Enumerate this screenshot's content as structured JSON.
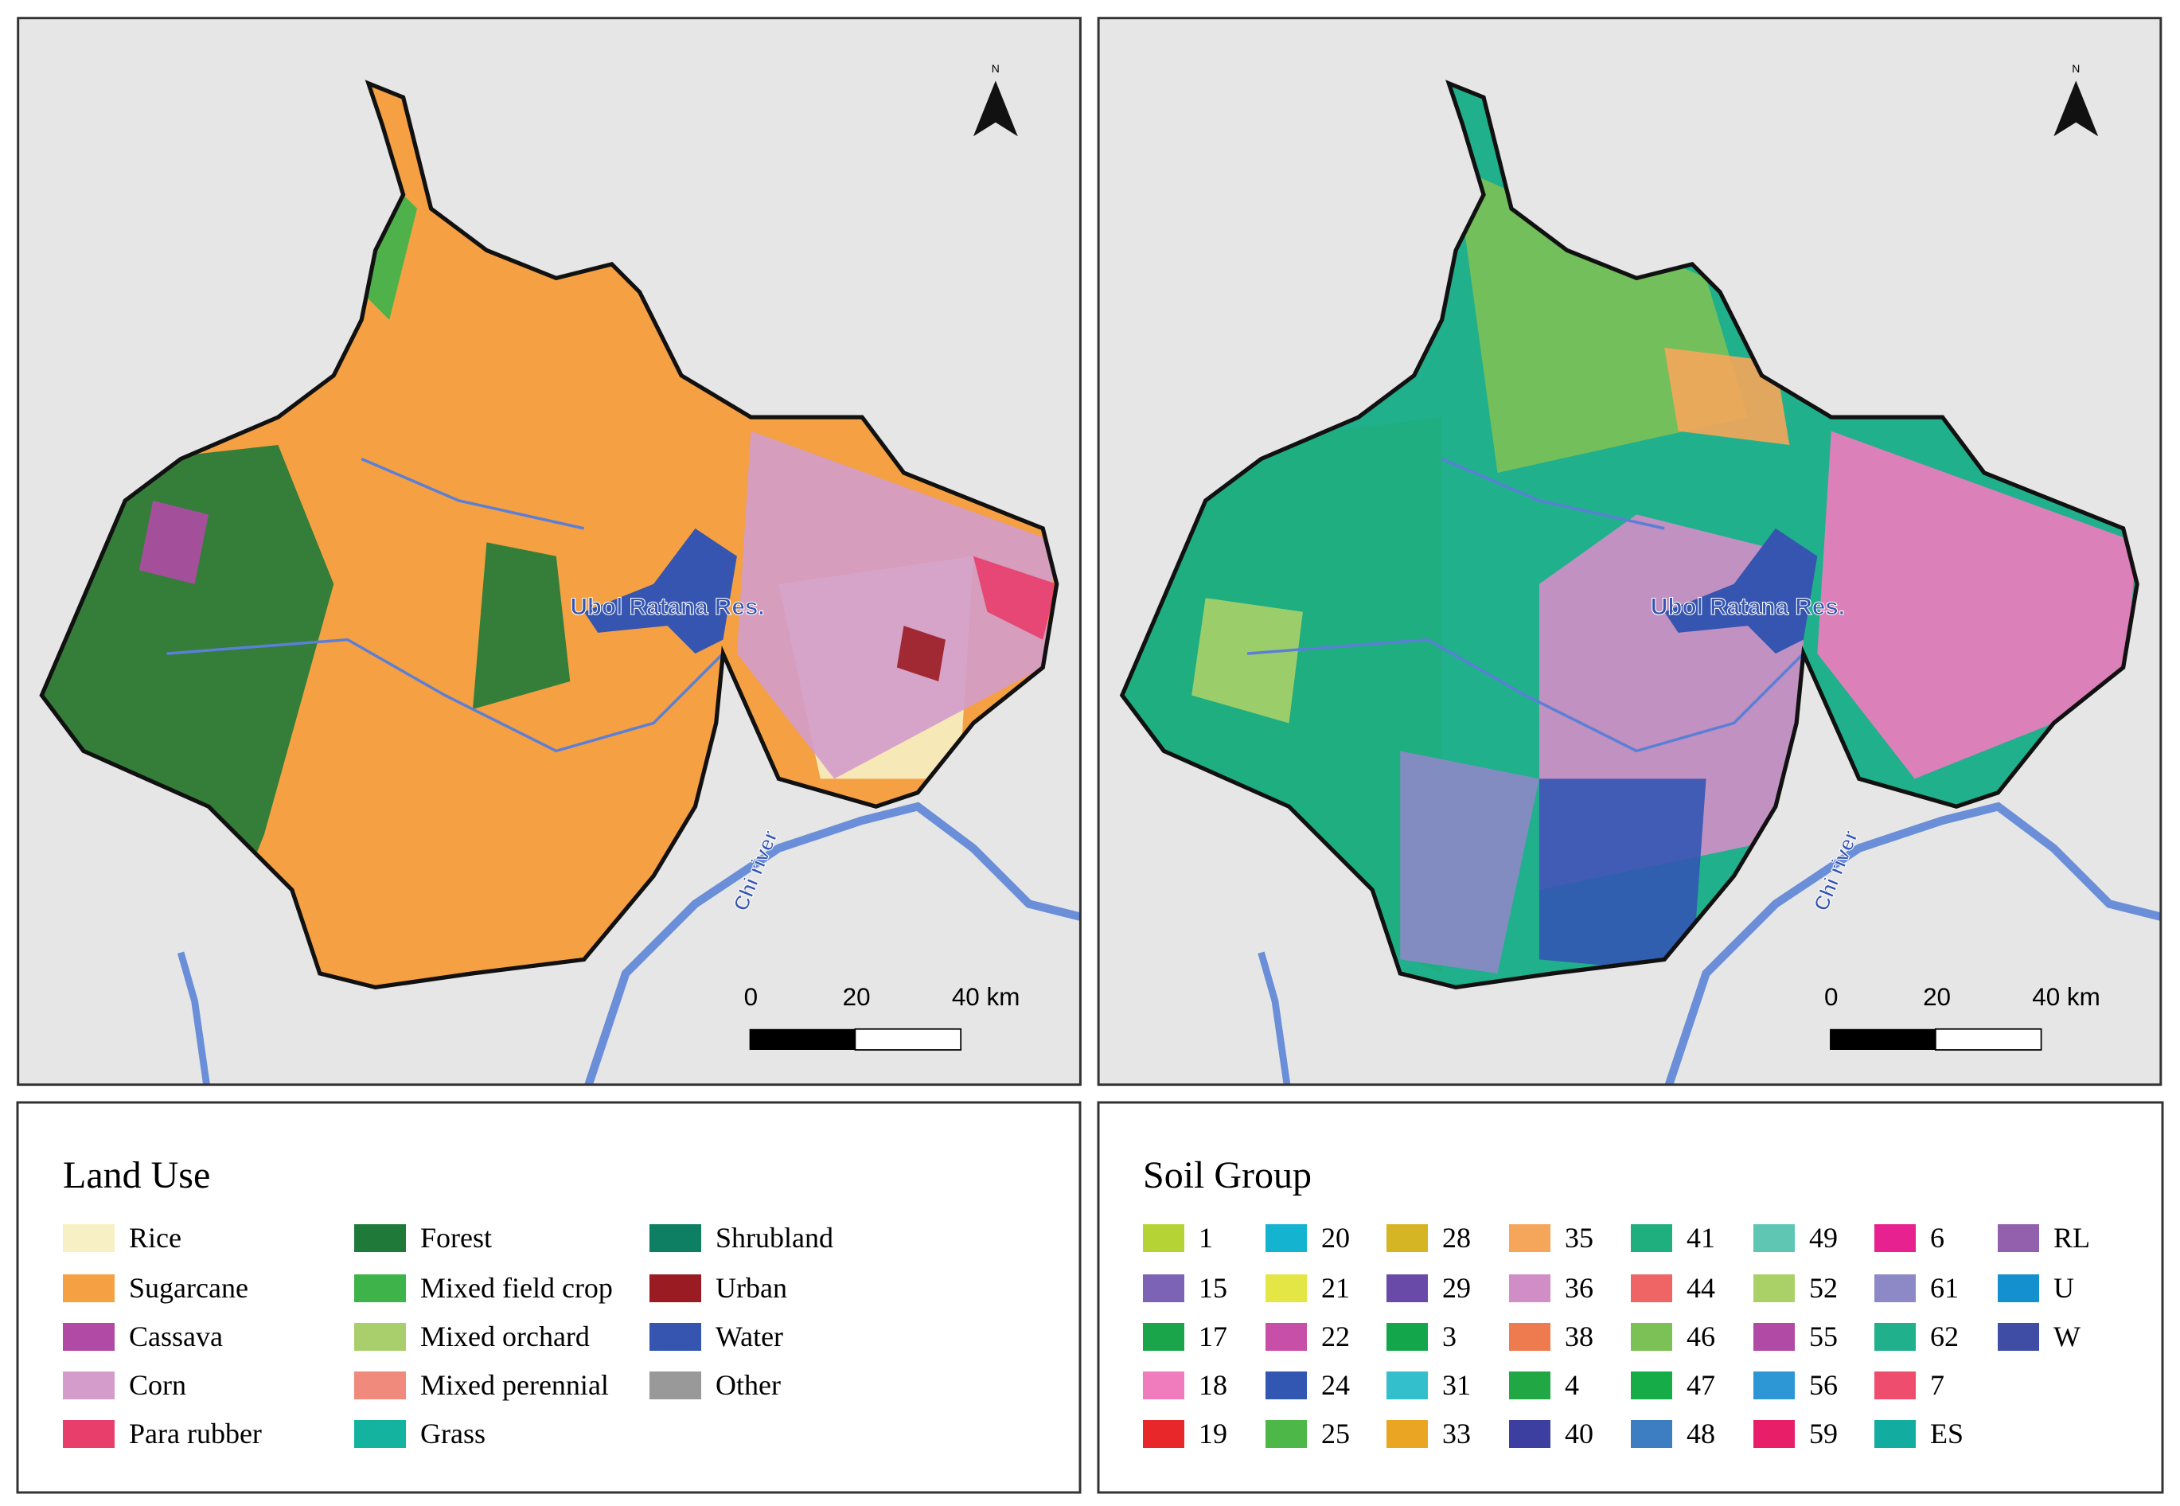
{
  "maps": [
    {
      "reservoir": "Ubol Ratana Res.",
      "river": "Chi river",
      "north": "N",
      "scale": [
        "0",
        "20",
        "40 km"
      ]
    },
    {
      "reservoir": "Ubol Ratana Res.",
      "river": "Chi river",
      "north": "N",
      "scale": [
        "0",
        "20",
        "40 km"
      ]
    }
  ],
  "legends": [
    {
      "title": "Land Use",
      "items": [
        {
          "label": "Rice",
          "color": "#f7f0c4"
        },
        {
          "label": "Sugarcane",
          "color": "#f5a042"
        },
        {
          "label": "Cassava",
          "color": "#b04aa4"
        },
        {
          "label": "Corn",
          "color": "#d39ccb"
        },
        {
          "label": "Para rubber",
          "color": "#e83e6c"
        },
        {
          "label": "Forest",
          "color": "#1f7a3a"
        },
        {
          "label": "Mixed field crop",
          "color": "#3db34a"
        },
        {
          "label": "Mixed orchard",
          "color": "#a9cf6d"
        },
        {
          "label": "Mixed perennial",
          "color": "#ef8a7c"
        },
        {
          "label": "Grass",
          "color": "#13b3a0"
        },
        {
          "label": "Shrubland",
          "color": "#0f7f64"
        },
        {
          "label": "Urban",
          "color": "#9a1c22"
        },
        {
          "label": "Water",
          "color": "#3555b0"
        },
        {
          "label": "Other",
          "color": "#999999"
        }
      ]
    },
    {
      "title": "Soil Group",
      "items": [
        {
          "label": "1",
          "color": "#b5d334"
        },
        {
          "label": "15",
          "color": "#7c63b5"
        },
        {
          "label": "17",
          "color": "#1aa54a"
        },
        {
          "label": "18",
          "color": "#f07bbd"
        },
        {
          "label": "19",
          "color": "#e8272b"
        },
        {
          "label": "20",
          "color": "#14b3cf"
        },
        {
          "label": "21",
          "color": "#e3e644"
        },
        {
          "label": "22",
          "color": "#c74fa8"
        },
        {
          "label": "24",
          "color": "#3257b3"
        },
        {
          "label": "25",
          "color": "#4db748"
        },
        {
          "label": "28",
          "color": "#d6b524"
        },
        {
          "label": "29",
          "color": "#6a4aa8"
        },
        {
          "label": "3",
          "color": "#14a64b"
        },
        {
          "label": "31",
          "color": "#34bfcc"
        },
        {
          "label": "33",
          "color": "#eaa623"
        },
        {
          "label": "35",
          "color": "#f6a65a"
        },
        {
          "label": "36",
          "color": "#d18ec6"
        },
        {
          "label": "38",
          "color": "#ee7b4f"
        },
        {
          "label": "4",
          "color": "#21a845"
        },
        {
          "label": "40",
          "color": "#3c3f9f"
        },
        {
          "label": "41",
          "color": "#1fae7e"
        },
        {
          "label": "44",
          "color": "#ef6565"
        },
        {
          "label": "46",
          "color": "#7cc155"
        },
        {
          "label": "47",
          "color": "#16ac47"
        },
        {
          "label": "48",
          "color": "#3c7ec1"
        },
        {
          "label": "49",
          "color": "#5fc6b4"
        },
        {
          "label": "52",
          "color": "#a9d168"
        },
        {
          "label": "55",
          "color": "#b04aa5"
        },
        {
          "label": "56",
          "color": "#2d97d5"
        },
        {
          "label": "59",
          "color": "#e81f68"
        },
        {
          "label": "6",
          "color": "#e7218f"
        },
        {
          "label": "61",
          "color": "#8d88c6"
        },
        {
          "label": "62",
          "color": "#20b08c"
        },
        {
          "label": "7",
          "color": "#ee4d6e"
        },
        {
          "label": "ES",
          "color": "#12aca1"
        },
        {
          "label": "RL",
          "color": "#9360ad"
        },
        {
          "label": "U",
          "color": "#1590cf"
        },
        {
          "label": "W",
          "color": "#3f4ea4"
        }
      ]
    }
  ]
}
